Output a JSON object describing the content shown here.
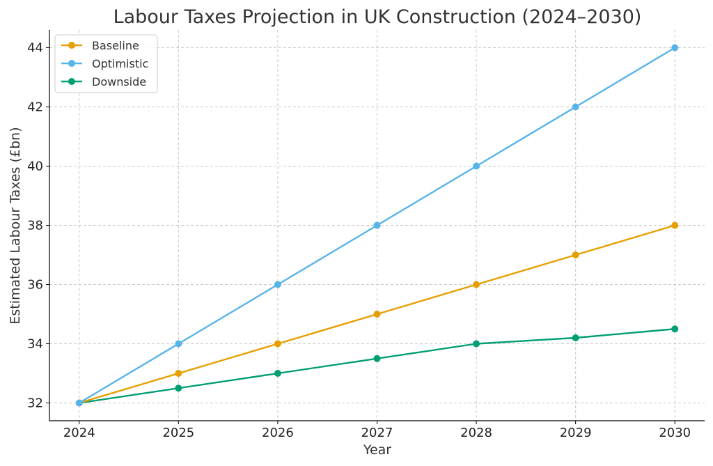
{
  "chart_data": {
    "type": "line",
    "title": "Labour Taxes Projection in UK Construction (2024–2030)",
    "xlabel": "Year",
    "ylabel": "Estimated Labour Taxes (£bn)",
    "x": [
      2024,
      2025,
      2026,
      2027,
      2028,
      2029,
      2030
    ],
    "x_tick_labels": [
      "2024",
      "2025",
      "2026",
      "2027",
      "2028",
      "2029",
      "2030"
    ],
    "y_ticks": [
      32,
      34,
      36,
      38,
      40,
      42,
      44
    ],
    "y_tick_labels": [
      "32",
      "34",
      "36",
      "38",
      "40",
      "42",
      "44"
    ],
    "xlim": [
      2023.7,
      2030.3
    ],
    "ylim": [
      31.4,
      44.6
    ],
    "grid": true,
    "legend_position": "top-left",
    "series": [
      {
        "name": "Baseline",
        "color": "#E69F00",
        "values": [
          32,
          33,
          34,
          35,
          36,
          37,
          38
        ]
      },
      {
        "name": "Optimistic",
        "color": "#56B4E9",
        "values": [
          32,
          34,
          36,
          38,
          40,
          42,
          44
        ]
      },
      {
        "name": "Downside",
        "color": "#009E73",
        "values": [
          32,
          32.5,
          33,
          33.5,
          34,
          34.2,
          34.5
        ]
      }
    ]
  }
}
